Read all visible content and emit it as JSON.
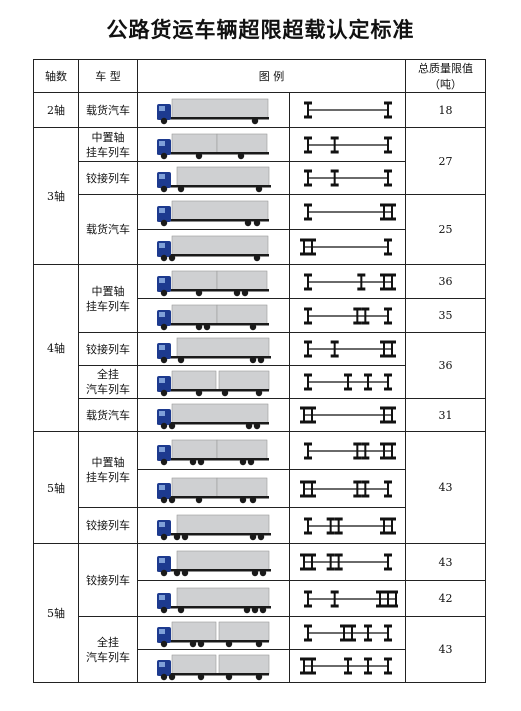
{
  "title": "公路货运车辆超限超载认定标准",
  "headers": {
    "axle": "轴数",
    "type": "车 型",
    "example": "图 例",
    "weight_line1": "总质量限值",
    "weight_line2": "（吨）"
  },
  "axle_labels": [
    "2轴",
    "3轴",
    "4轴",
    "5轴",
    "5轴"
  ],
  "vehicle_types": {
    "t1": [
      "载货汽车"
    ],
    "t2": [
      "中置轴",
      "挂车列车"
    ],
    "t3": [
      "铰接列车"
    ],
    "t4": [
      "载货汽车"
    ],
    "t5": [
      "中置轴",
      "挂车列车"
    ],
    "t6": [
      "铰接列车"
    ],
    "t7": [
      "全挂",
      "汽车列车"
    ],
    "t8": [
      "载货汽车"
    ],
    "t9": [
      "中置轴",
      "挂车列车"
    ],
    "t10": [
      "铰接列车"
    ],
    "t11": [
      "铰接列车"
    ],
    "t12": [
      "全挂",
      "汽车列车"
    ]
  },
  "weights": {
    "w1": "18",
    "w2": "27",
    "w3": "25",
    "w4": "36",
    "w5": "35",
    "w6": "36",
    "w7": "31",
    "w8": "43",
    "w9": "43",
    "w10": "42",
    "w11": "43"
  },
  "colors": {
    "cab": "#1d3a8f",
    "box": "#cfd0d2",
    "chassis": "#1a1a1a",
    "diagram": "#111111"
  }
}
